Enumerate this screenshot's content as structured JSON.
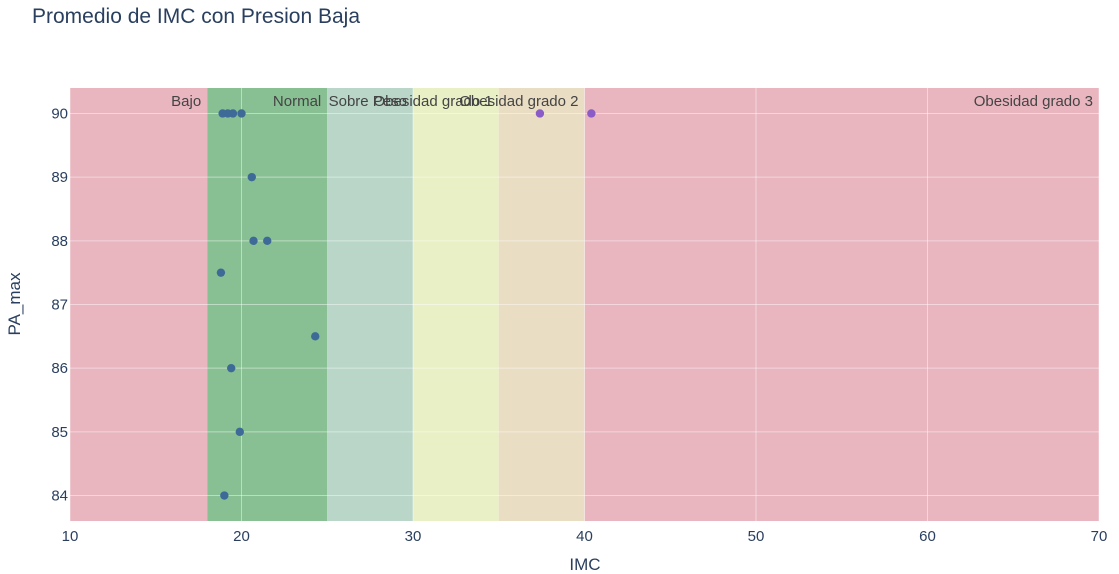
{
  "chart_data": {
    "type": "scatter",
    "title": "Promedio de IMC con Presion Baja",
    "xlabel": "IMC",
    "ylabel": "PA_max",
    "xlim": [
      10,
      70
    ],
    "ylim": [
      83.6,
      90.4
    ],
    "xticks": [
      10,
      20,
      30,
      40,
      50,
      60,
      70
    ],
    "yticks": [
      84,
      85,
      86,
      87,
      88,
      89,
      90
    ],
    "grid": true,
    "bands": [
      {
        "label": "Bajo",
        "x0": 10,
        "x1": 18,
        "color": "#e9b6c0"
      },
      {
        "label": "Normal",
        "x0": 18,
        "x1": 25,
        "color": "#88c093"
      },
      {
        "label": "Sobre Peso",
        "x0": 25,
        "x1": 30,
        "color": "#b9d6c8"
      },
      {
        "label": "Obesidad grado 1",
        "x0": 30,
        "x1": 35,
        "color": "#e9f0c5"
      },
      {
        "label": "Obesidad grado 2",
        "x0": 35,
        "x1": 40,
        "color": "#e9ddc3"
      },
      {
        "label": "Obesidad grado 3",
        "x0": 40,
        "x1": 70,
        "color": "#e9b6c0"
      }
    ],
    "series": [
      {
        "color": "#3e6a97",
        "points": [
          {
            "x": 18.9,
            "y": 90
          },
          {
            "x": 19.2,
            "y": 90
          },
          {
            "x": 19.5,
            "y": 90
          },
          {
            "x": 20.0,
            "y": 90
          },
          {
            "x": 20.6,
            "y": 89
          },
          {
            "x": 20.7,
            "y": 88
          },
          {
            "x": 21.5,
            "y": 88
          },
          {
            "x": 18.8,
            "y": 87.5
          },
          {
            "x": 24.3,
            "y": 86.5
          },
          {
            "x": 19.4,
            "y": 86
          },
          {
            "x": 19.9,
            "y": 85
          },
          {
            "x": 19.0,
            "y": 84
          }
        ]
      },
      {
        "color": "#8a5cc7",
        "points": [
          {
            "x": 37.4,
            "y": 90
          },
          {
            "x": 40.4,
            "y": 90
          }
        ]
      }
    ]
  }
}
